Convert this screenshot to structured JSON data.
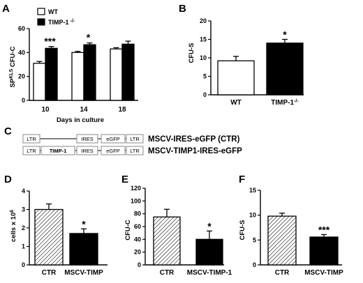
{
  "colors": {
    "wt": "#ffffff",
    "timp": "#000000",
    "stroke": "#000000",
    "box": "#888888",
    "boxfill": "#ffffff"
  },
  "panel_labels": [
    "A",
    "B",
    "C",
    "D",
    "E",
    "F"
  ],
  "constructs": {
    "rows": [
      {
        "elements": [
          "LTR",
          "",
          "IRES",
          "eGFP",
          "LTR"
        ],
        "name": "MSCV-IRES-eGFP (CTR)"
      },
      {
        "elements": [
          "LTR",
          "TIMP-1",
          "IRES",
          "eGFP",
          "LTR"
        ],
        "name": "MSCV-TIMP1-IRES-eGFP"
      }
    ]
  },
  "chart_data": [
    {
      "panel": "A",
      "type": "bar",
      "ylabel_main": "SP",
      "ylabel_sup": "KLS",
      "ylabel_rest": " CFU-C",
      "xlabel": "Days in culture",
      "categories": [
        "10",
        "14",
        "18"
      ],
      "ylim": [
        0,
        60
      ],
      "yticks": [
        "0",
        "20",
        "40",
        "60"
      ],
      "legend": {
        "placement": "top-left",
        "wt": "WT",
        "timp_main": "TIMP-1",
        "timp_sup": "-/-"
      },
      "series": [
        {
          "name": "WT",
          "values": [
            31,
            40,
            43
          ],
          "errors": [
            1.5,
            1,
            1
          ]
        },
        {
          "name": "TIMP-1 -/-",
          "values": [
            43.5,
            46.5,
            47
          ],
          "errors": [
            1.5,
            1.5,
            2.5
          ]
        }
      ],
      "annotations": [
        "***",
        "*",
        ""
      ]
    },
    {
      "panel": "B",
      "type": "bar",
      "ylabel": "CFU-S",
      "categories": [
        "WT",
        "TIMP-1"
      ],
      "category_sup": [
        "",
        "-/-"
      ],
      "ylim": [
        0,
        20
      ],
      "yticks": [
        "0",
        "5",
        "10",
        "15",
        "20"
      ],
      "values": [
        9.2,
        14
      ],
      "errors": [
        1.2,
        1
      ],
      "fills": [
        "white",
        "black"
      ],
      "annotations": [
        "",
        "*"
      ]
    },
    {
      "panel": "D",
      "type": "bar",
      "ylabel_main": "cells x 10",
      "ylabel_sup": "6",
      "categories": [
        "CTR",
        "MSCV-TIMP"
      ],
      "ylim": [
        0,
        4
      ],
      "yticks": [
        "0",
        "1",
        "2",
        "3",
        "4"
      ],
      "values": [
        3.0,
        1.7
      ],
      "errors": [
        0.3,
        0.25
      ],
      "fills": [
        "hatch",
        "black"
      ],
      "annotations": [
        "",
        "*"
      ]
    },
    {
      "panel": "E",
      "type": "bar",
      "ylabel": "CFU-C",
      "categories": [
        "CTR",
        "MSCV-TIMP-1"
      ],
      "ylim": [
        0,
        120
      ],
      "yticks": [
        "0",
        "20",
        "40",
        "60",
        "80",
        "100",
        "120"
      ],
      "values": [
        75,
        40
      ],
      "errors": [
        12,
        13
      ],
      "fills": [
        "hatch",
        "black"
      ],
      "annotations": [
        "",
        "*"
      ]
    },
    {
      "panel": "F",
      "type": "bar",
      "ylabel": "CFU-S",
      "categories": [
        "CTR",
        "MSCV-TIMP"
      ],
      "ylim": [
        0,
        15
      ],
      "yticks": [
        "0",
        "5",
        "10",
        "15"
      ],
      "values": [
        9.8,
        5.6
      ],
      "errors": [
        0.6,
        0.5
      ],
      "fills": [
        "hatch",
        "black"
      ],
      "annotations": [
        "",
        "***"
      ]
    }
  ]
}
